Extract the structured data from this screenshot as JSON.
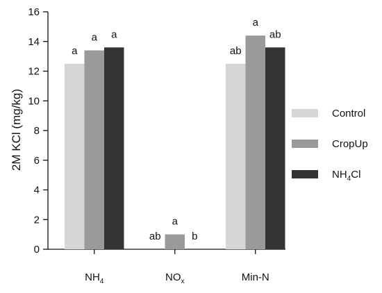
{
  "chart_data": {
    "type": "bar",
    "title": "",
    "xlabel": "",
    "ylabel": "2M KCl (mg/kg)",
    "ylim": [
      0,
      16
    ],
    "yticks": [
      0,
      2,
      4,
      6,
      8,
      10,
      12,
      14,
      16
    ],
    "grid": false,
    "legend_position": "right",
    "categories": [
      {
        "main": "NH",
        "sub": "4"
      },
      {
        "main": "NO",
        "sub": "x"
      },
      {
        "main": "Min-N",
        "sub": ""
      }
    ],
    "series": [
      {
        "name": "Control",
        "label_parts": {
          "main": "Control",
          "sub": "",
          "tail": ""
        },
        "color": "#d6d6d6",
        "values": [
          12.5,
          0,
          12.5
        ],
        "letters": [
          "a",
          "ab",
          "ab"
        ]
      },
      {
        "name": "CropUp",
        "label_parts": {
          "main": "CropUp",
          "sub": "",
          "tail": ""
        },
        "color": "#9a9a9b",
        "values": [
          13.4,
          1.0,
          14.4
        ],
        "letters": [
          "a",
          "a",
          "a"
        ]
      },
      {
        "name": "NH4Cl",
        "label_parts": {
          "main": "NH",
          "sub": "4",
          "tail": "Cl"
        },
        "color": "#343434",
        "values": [
          13.6,
          0,
          13.6
        ],
        "letters": [
          "a",
          "b",
          "ab"
        ]
      }
    ]
  }
}
